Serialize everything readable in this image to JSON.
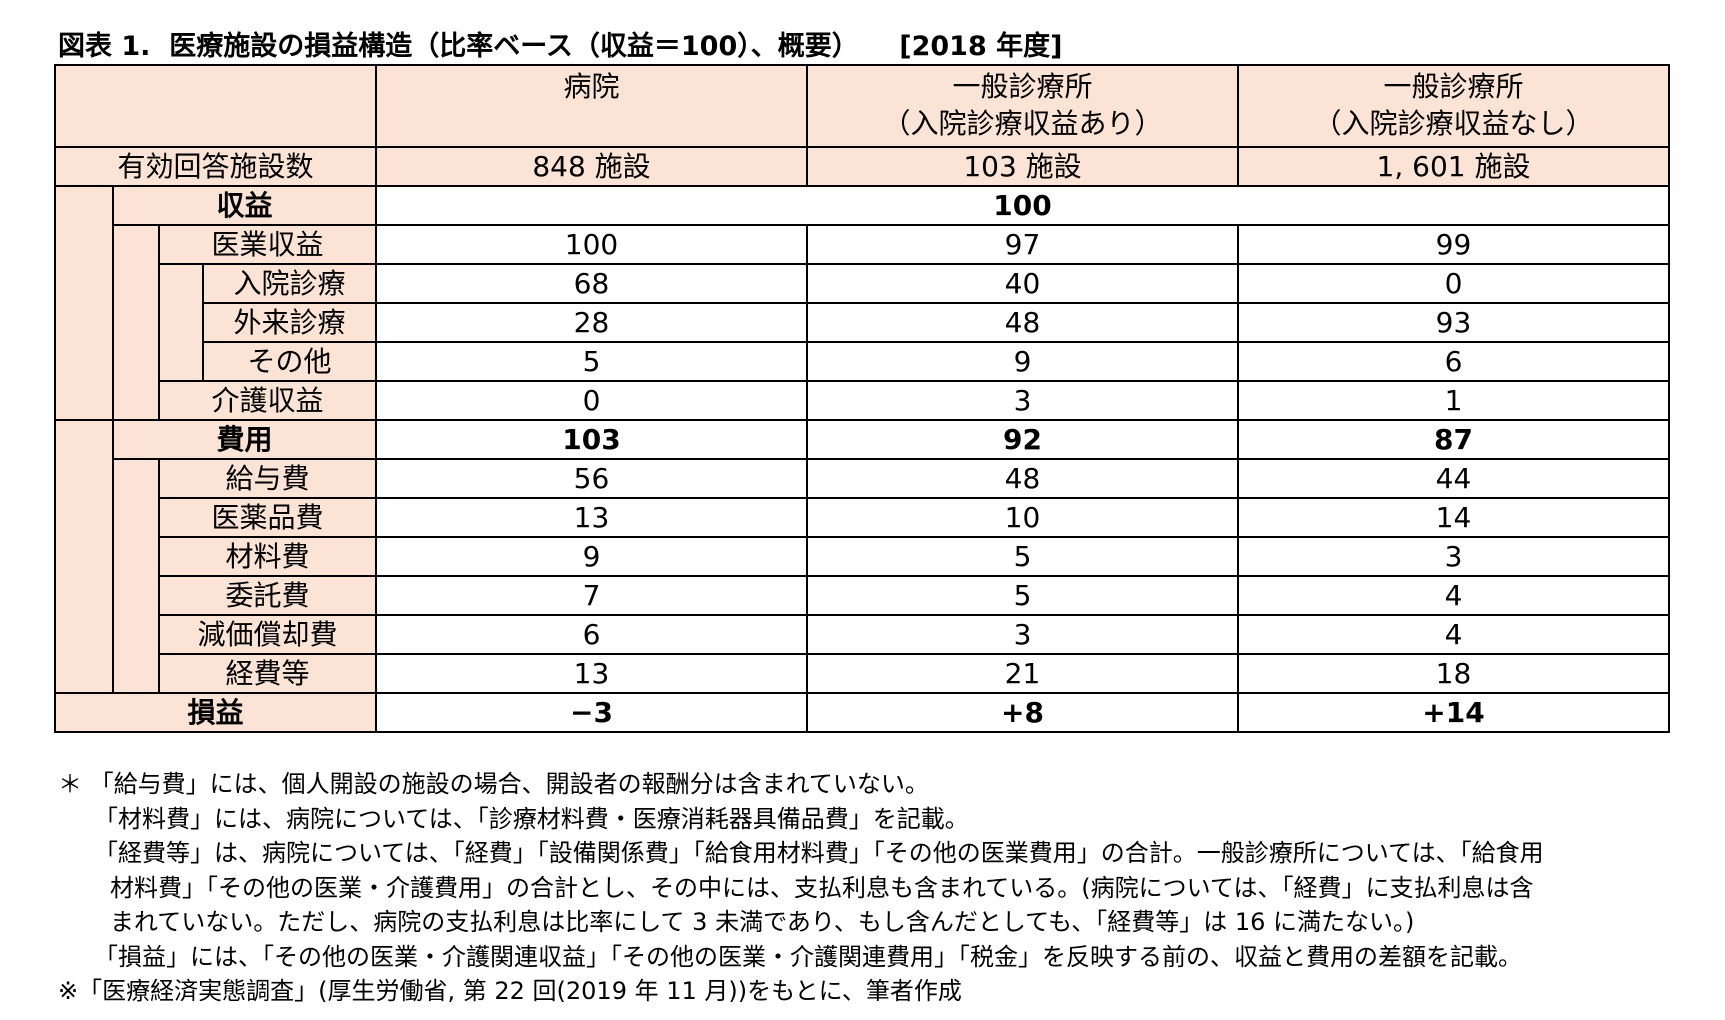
{
  "title": "図表 1.  医療施設の損益構造（比率ベース（収益＝100）、概要）　　[2018 年度]",
  "table": {
    "columns": [
      {
        "line1": "病院",
        "line2": ""
      },
      {
        "line1": "一般診療所",
        "line2": "（入院診療収益あり）"
      },
      {
        "line1": "一般診療所",
        "line2": "（入院診療収益なし）"
      }
    ],
    "facilities": {
      "label": "有効回答施設数",
      "values": [
        "848 施設",
        "103 施設",
        "1, 601 施設"
      ]
    },
    "revenue": {
      "label": "収益",
      "value": "100"
    },
    "rows": {
      "medical": {
        "label": "医業収益",
        "values": [
          "100",
          "97",
          "99"
        ]
      },
      "inpatient": {
        "label": "入院診療",
        "values": [
          "68",
          "40",
          "0"
        ]
      },
      "outpatient": {
        "label": "外来診療",
        "values": [
          "28",
          "48",
          "93"
        ]
      },
      "other": {
        "label": "その他",
        "values": [
          "5",
          "9",
          "6"
        ]
      },
      "care": {
        "label": "介護収益",
        "values": [
          "0",
          "3",
          "1"
        ]
      },
      "expense": {
        "label": "費用",
        "values": [
          "103",
          "92",
          "87"
        ]
      },
      "salary": {
        "label": "給与費",
        "values": [
          "56",
          "48",
          "44"
        ]
      },
      "drug": {
        "label": "医薬品費",
        "values": [
          "13",
          "10",
          "14"
        ]
      },
      "material": {
        "label": "材料費",
        "values": [
          "9",
          "5",
          "3"
        ]
      },
      "outsource": {
        "label": "委託費",
        "values": [
          "7",
          "5",
          "4"
        ]
      },
      "depreciation": {
        "label": "減価償却費",
        "values": [
          "6",
          "3",
          "4"
        ]
      },
      "overhead": {
        "label": "経費等",
        "values": [
          "13",
          "21",
          "18"
        ]
      },
      "profit": {
        "label": "損益",
        "values": [
          "−3",
          "+8",
          "+14"
        ]
      }
    }
  },
  "notes": [
    "＊ 「給与費」には、個人開設の施設の場合、開設者の報酬分は含まれていない。",
    "「材料費」には、病院については、「診療材料費・医療消耗器具備品費」を記載。",
    "「経費等」は、病院については、「経費」「設備関係費」「給食用材料費」「その他の医業費用」の合計。一般診療所については、「給食用",
    "材料費」「その他の医業・介護費用」の合計とし、その中には、支払利息も含まれている。(病院については、「経費」に支払利息は含",
    "まれていない。ただし、病院の支払利息は比率にして 3 未満であり、もし含んだとしても、「経費等」は 16 に満たない。)",
    "「損益」には、「その他の医業・介護関連収益」「その他の医業・介護関連費用」「税金」を反映する前の、収益と費用の差額を記載。",
    "※「医療経済実態調査」(厚生労働省, 第 22 回(2019 年 11 月))をもとに、筆者作成"
  ],
  "colors": {
    "header_bg": "#fbe4d5",
    "border": "#000000"
  }
}
